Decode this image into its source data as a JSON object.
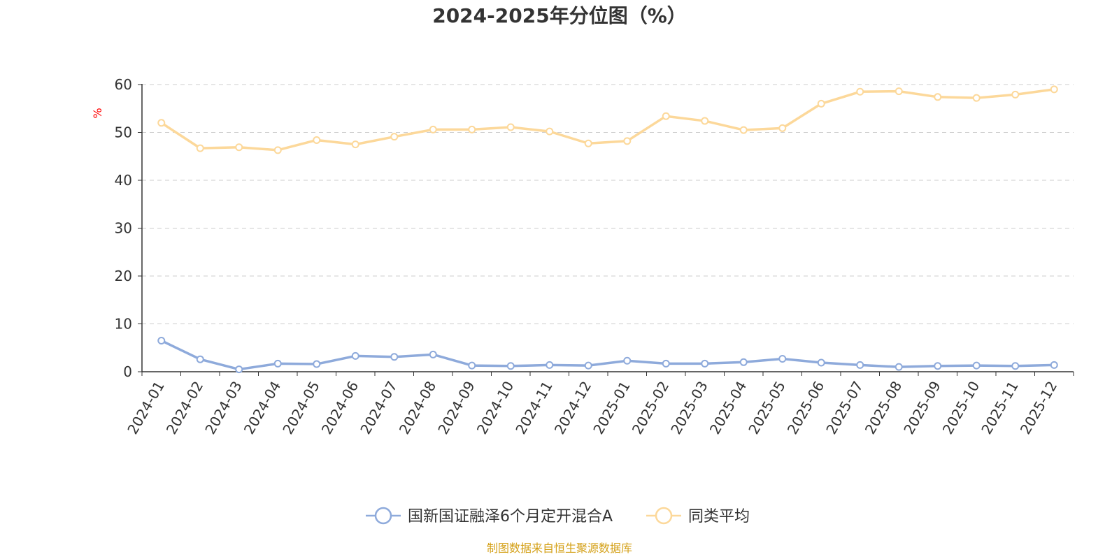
{
  "chart_data": {
    "type": "line",
    "title": "2024-2025年分位图（%）",
    "ylabel": "%",
    "ylim": [
      0,
      60
    ],
    "yticks": [
      "0",
      "10",
      "20",
      "30",
      "40",
      "50",
      "60"
    ],
    "grid": true,
    "legend_position": "bottom-center",
    "categories": [
      "2024-01",
      "2024-02",
      "2024-03",
      "2024-04",
      "2024-05",
      "2024-06",
      "2024-07",
      "2024-08",
      "2024-09",
      "2024-10",
      "2024-11",
      "2024-12",
      "2025-01",
      "2025-02",
      "2025-03",
      "2025-04",
      "2025-05",
      "2025-06",
      "2025-07",
      "2025-08",
      "2025-09",
      "2025-10",
      "2025-11",
      "2025-12"
    ],
    "series": [
      {
        "name": "国新国证融泽6个月定开混合A",
        "color": "#8eaadb",
        "values": [
          6.5,
          2.6,
          0.5,
          1.7,
          1.6,
          3.3,
          3.1,
          3.6,
          1.3,
          1.2,
          1.4,
          1.3,
          2.3,
          1.7,
          1.7,
          2.0,
          2.7,
          1.9,
          1.4,
          1.0,
          1.2,
          1.3,
          1.2,
          1.4
        ]
      },
      {
        "name": "同类平均",
        "color": "#fcd89a",
        "values": [
          52.0,
          46.7,
          46.9,
          46.3,
          48.4,
          47.5,
          49.1,
          50.6,
          50.6,
          51.1,
          50.2,
          47.7,
          48.2,
          53.4,
          52.4,
          50.5,
          50.9,
          56.0,
          58.5,
          58.6,
          57.4,
          57.2,
          57.9,
          59.0
        ]
      }
    ]
  },
  "footer": {
    "source": "制图数据来自恒生聚源数据库",
    "source_color": "#d4a017"
  },
  "colors": {
    "axis": "#333333",
    "grid": "#cccccc",
    "ylabel": "#ff0000"
  }
}
